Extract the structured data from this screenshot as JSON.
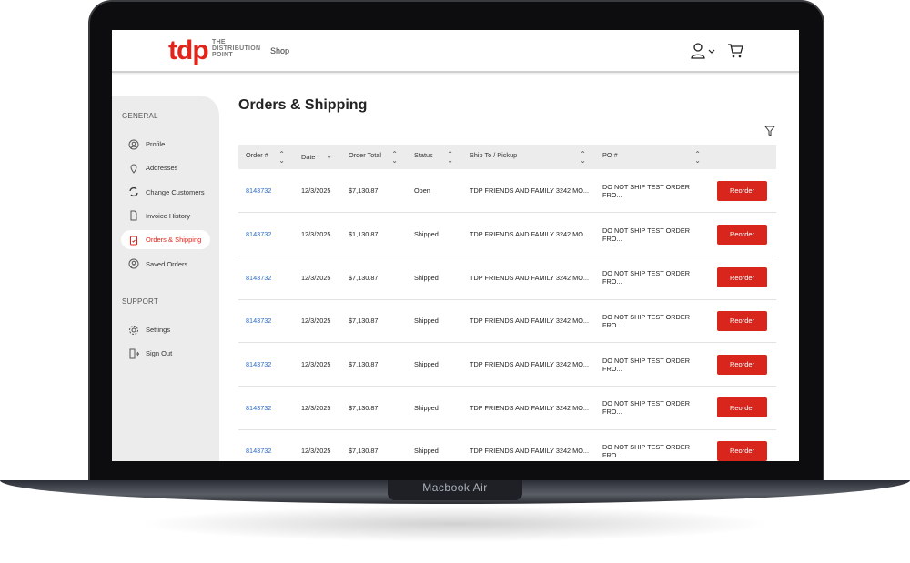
{
  "device": {
    "label": "Macbook Air"
  },
  "header": {
    "logo": "tdp",
    "logo_sub": [
      "THE",
      "DISTRIBUTION",
      "POINT"
    ],
    "shop": "Shop"
  },
  "sidebar": {
    "general": "GENERAL",
    "support": "SUPPORT",
    "items": [
      {
        "label": "Profile",
        "icon": "user-circle"
      },
      {
        "label": "Addresses",
        "icon": "map-pin"
      },
      {
        "label": "Change Customers",
        "icon": "refresh"
      },
      {
        "label": "Invoice History",
        "icon": "document"
      },
      {
        "label": "Orders & Shipping",
        "icon": "clipboard",
        "active": true
      },
      {
        "label": "Saved Orders",
        "icon": "user-circle"
      }
    ],
    "support_items": [
      {
        "label": "Settings",
        "icon": "gear"
      },
      {
        "label": "Sign Out",
        "icon": "sign-out"
      }
    ]
  },
  "main": {
    "title": "Orders & Shipping",
    "columns": [
      "Order #",
      "Date",
      "Order Total",
      "Status",
      "Ship To / Pickup",
      "PO #"
    ],
    "button_label": "Reorder",
    "rows": [
      [
        "8143732",
        "12/3/2025",
        "$7,130.87",
        "Open",
        "TDP FRIENDS AND FAMILY 3242 MO...",
        "DO NOT SHIP TEST ORDER FRO..."
      ],
      [
        "8143732",
        "12/3/2025",
        "$1,130.87",
        "Shipped",
        "TDP FRIENDS AND FAMILY 3242 MO...",
        "DO NOT SHIP TEST ORDER FRO..."
      ],
      [
        "8143732",
        "12/3/2025",
        "$7,130.87",
        "Shipped",
        "TDP FRIENDS AND FAMILY 3242 MO...",
        "DO NOT SHIP TEST ORDER FRO..."
      ],
      [
        "8143732",
        "12/3/2025",
        "$7,130.87",
        "Shipped",
        "TDP FRIENDS AND FAMILY 3242 MO...",
        "DO NOT SHIP TEST ORDER FRO..."
      ],
      [
        "8143732",
        "12/3/2025",
        "$7,130.87",
        "Shipped",
        "TDP FRIENDS AND FAMILY 3242 MO...",
        "DO NOT SHIP TEST ORDER FRO..."
      ],
      [
        "8143732",
        "12/3/2025",
        "$7,130.87",
        "Shipped",
        "TDP FRIENDS AND FAMILY 3242 MO...",
        "DO NOT SHIP TEST ORDER FRO..."
      ],
      [
        "8143732",
        "12/3/2025",
        "$7,130.87",
        "Shipped",
        "TDP FRIENDS AND FAMILY 3242 MO...",
        "DO NOT SHIP TEST ORDER FRO..."
      ]
    ]
  },
  "colors": {
    "accent": "#e1251b",
    "link": "#2d6bc4"
  }
}
